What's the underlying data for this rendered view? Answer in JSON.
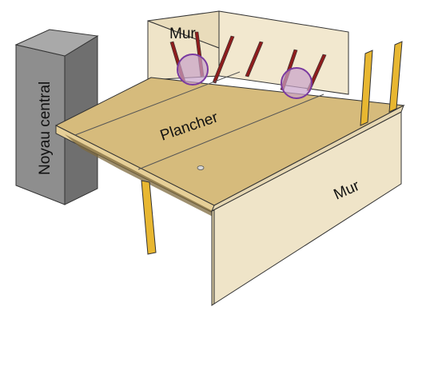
{
  "labels": {
    "core": "Noyau central",
    "back_wall": "Mur",
    "floor": "Plancher",
    "side_wall": "Mur"
  },
  "colors": {
    "core_face": "#8e8e8e",
    "core_side": "#6f6f6f",
    "wall_face": "#efe4c8",
    "wall_shadow": "#e2d4b0",
    "floor_top": "#d6bb7c",
    "floor_edge": "#e6cf97",
    "post": "#e8b731",
    "anchor": "#8e1d1d",
    "highlight_circle_fill": "#c9a3c9",
    "highlight_circle_stroke": "#7a3aa0",
    "outline": "#333333"
  },
  "icons": {
    "anchor": "diagonal-anchor-bar",
    "highlight": "purple-circle-marker"
  }
}
